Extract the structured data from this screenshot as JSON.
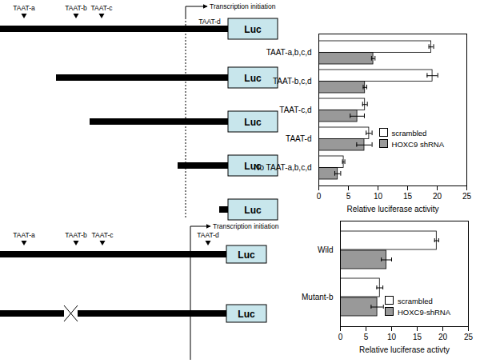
{
  "chart_data": [
    {
      "type": "bar",
      "orientation": "horizontal",
      "categories": [
        "TAAT-a,b,c,d",
        "TAAT-b,c,d",
        "TAAT-c,d",
        "TAAT-d",
        "No TAAT-a,b,c,d"
      ],
      "series": [
        {
          "name": "scrambled",
          "color": "#ffffff",
          "values": [
            19,
            19.2,
            7.8,
            8.5,
            4.2
          ],
          "errors": [
            0.4,
            0.9,
            0.4,
            0.5,
            0.2
          ]
        },
        {
          "name": "HOXC9 shRNA",
          "color": "#999999",
          "values": [
            9.2,
            7.8,
            6.5,
            7.7,
            3.2
          ],
          "errors": [
            0.3,
            0.3,
            1.2,
            1.3,
            0.5
          ]
        }
      ],
      "x_label": "Relative luciferase activity",
      "xlim": [
        0,
        25
      ],
      "xticks": [
        0,
        5,
        10,
        15,
        20,
        25
      ],
      "legend": "lower right",
      "grid": false
    },
    {
      "type": "bar",
      "orientation": "horizontal",
      "categories": [
        "Wild",
        "Mutant-b"
      ],
      "series": [
        {
          "name": "scrambled",
          "color": "#ffffff",
          "values": [
            18.8,
            7.7
          ],
          "errors": [
            0.4,
            0.6
          ]
        },
        {
          "name": "HOXC9-shRNA",
          "color": "#999999",
          "values": [
            9,
            7.2
          ],
          "errors": [
            1.0,
            1.2
          ]
        }
      ],
      "x_label": "Relative luciferase activty",
      "xlim": [
        0,
        25
      ],
      "xticks": [
        0,
        5,
        10,
        15,
        20,
        25
      ],
      "legend": "lower right",
      "grid": false
    }
  ],
  "diagrams": [
    {
      "sites": [
        "TAAT-a",
        "TAAT-b",
        "TAAT-c",
        "TAAT-d"
      ],
      "start_label": "Transcription initiation",
      "constructs": [
        "Luc",
        "Luc",
        "Luc",
        "Luc",
        "Luc"
      ]
    },
    {
      "sites": [
        "TAAT-a",
        "TAAT-b",
        "TAAT-c",
        "TAAT-d"
      ],
      "start_label": "Transcription initiation",
      "constructs": [
        "Luc",
        "Luc"
      ]
    }
  ]
}
